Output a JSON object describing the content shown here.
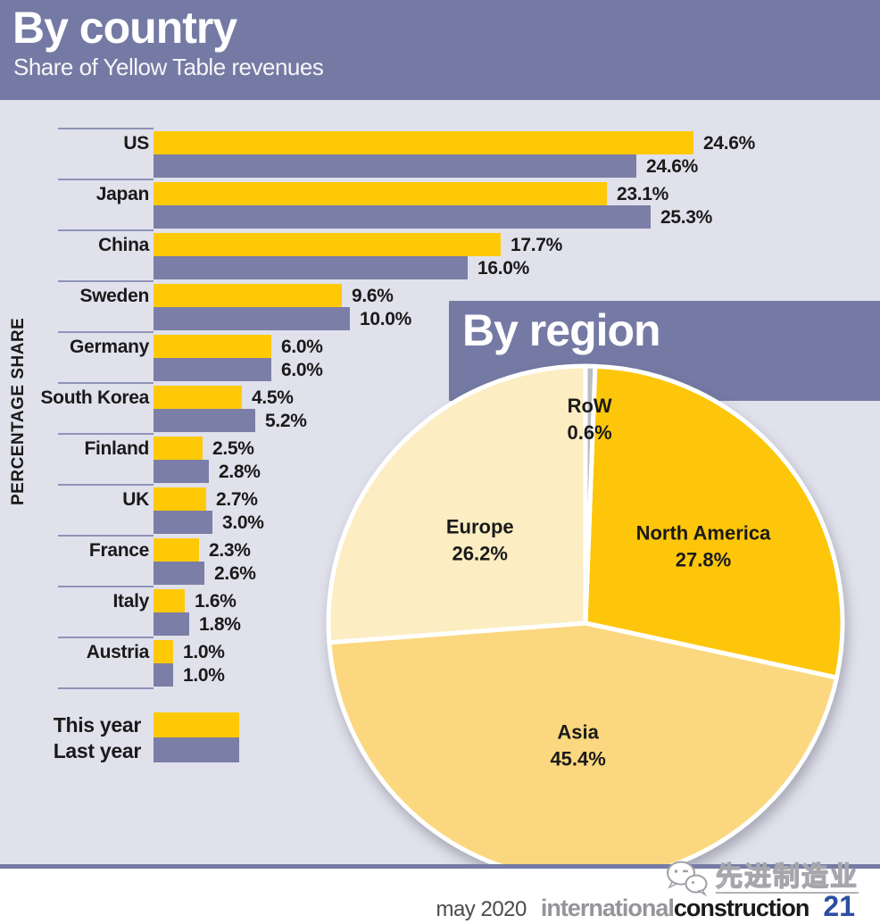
{
  "header": {
    "title": "By country",
    "subtitle": "Share of Yellow Table revenues"
  },
  "colors": {
    "header_purple": "#757AA4",
    "background_lavender": "#E0E1EB",
    "bar_yellow": "#FFC907",
    "bar_purple": "#7B7EA6",
    "separator_line": "#9093B6",
    "pie_north_america": "#FDC60A",
    "pie_asia": "#FBD87F",
    "pie_europe": "#FCEDC2",
    "pie_row_gray": "#BCBDC1",
    "page_number_blue": "#2B4EA1"
  },
  "chart_data": [
    {
      "type": "bar",
      "title": "By country",
      "subtitle": "Share of Yellow Table revenues",
      "orientation": "horizontal",
      "ylabel": "PERCENTAGE SHARE",
      "unit": "%",
      "legend_position": "bottom-left",
      "categories": [
        "US",
        "Japan",
        "China",
        "Sweden",
        "Germany",
        "South Korea",
        "Finland",
        "UK",
        "France",
        "Italy",
        "Austria"
      ],
      "series": [
        {
          "name": "This year",
          "color": "#FFC907",
          "values": [
            24.6,
            23.1,
            17.7,
            9.6,
            6.0,
            4.5,
            2.5,
            2.7,
            2.3,
            1.6,
            1.0
          ]
        },
        {
          "name": "Last year",
          "color": "#7B7EA6",
          "values": [
            24.6,
            25.3,
            16.0,
            10.0,
            6.0,
            5.2,
            2.8,
            3.0,
            2.6,
            1.8,
            1.0
          ]
        }
      ]
    },
    {
      "type": "pie",
      "title": "By region",
      "start_angle_deg": 0,
      "direction": "clockwise",
      "slices": [
        {
          "label": "RoW",
          "value": 0.6,
          "display": "0.6%",
          "color": "#BCBDC1"
        },
        {
          "label": "North America",
          "value": 27.8,
          "display": "27.8%",
          "color": "#FDC60A"
        },
        {
          "label": "Asia",
          "value": 45.4,
          "display": "45.4%",
          "color": "#FBD87F"
        },
        {
          "label": "Europe",
          "value": 26.2,
          "display": "26.2%",
          "color": "#FCEDC2"
        }
      ]
    }
  ],
  "footer": {
    "issue_date": "may 2020",
    "magazine_name_light": "international",
    "magazine_name_bold": "construction",
    "page_number": "21",
    "watermark_text": "先进制造业"
  }
}
